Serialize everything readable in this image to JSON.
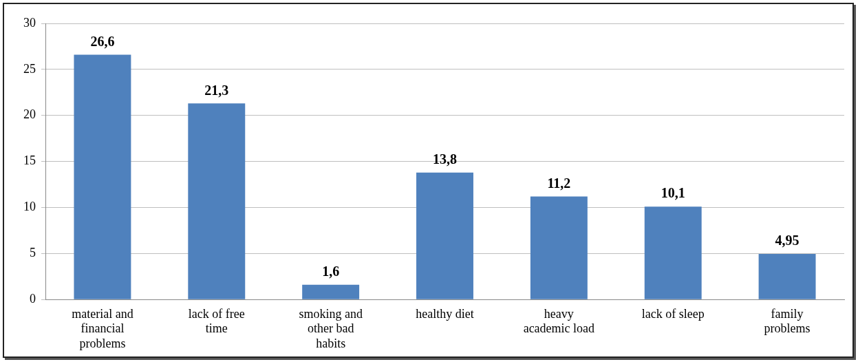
{
  "chart_data": {
    "type": "bar",
    "categories": [
      "material and financial problems",
      "lack of free time",
      "smoking and other bad habits",
      "healthy diet",
      "heavy academic load",
      "lack of sleep",
      "family problems"
    ],
    "values": [
      26.6,
      21.3,
      1.6,
      13.8,
      11.2,
      10.1,
      4.95
    ],
    "value_labels": [
      "26,6",
      "21,3",
      "1,6",
      "13,8",
      "11,2",
      "10,1",
      "4,95"
    ],
    "color": "#4f81bd",
    "ylim": [
      0,
      30
    ],
    "yticks": [
      0,
      5,
      10,
      15,
      20,
      25,
      30
    ],
    "grid": "y",
    "legend": false
  }
}
